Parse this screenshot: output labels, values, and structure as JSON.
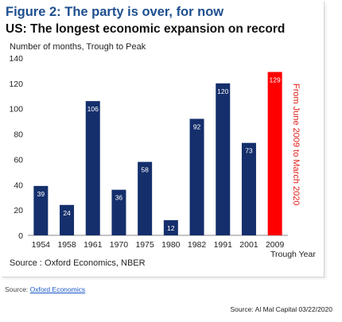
{
  "header": {
    "figure_title": "Figure 2: The party is over, for now"
  },
  "chart_data": {
    "type": "bar",
    "title": "US: The longest economic expansion on record",
    "ylabel": "Number of months, Trough to Peak",
    "xlabel": "Trough Year",
    "categories": [
      "1954",
      "1958",
      "1961",
      "1970",
      "1975",
      "1980",
      "1982",
      "1991",
      "2001",
      "2009"
    ],
    "values": [
      39,
      24,
      106,
      36,
      58,
      12,
      92,
      120,
      73,
      129
    ],
    "ylim": [
      0,
      140
    ],
    "yticks": [
      0,
      20,
      40,
      60,
      80,
      100,
      120,
      140
    ],
    "colors": {
      "default_bar": "#152f6c",
      "highlight_bar": "#ff0000",
      "annotation": "#e0201b"
    },
    "highlight_category": "2009",
    "annotation": "From June 2009 to March 2020",
    "source": "Source : Oxford Economics, NBER",
    "grid": false
  },
  "footer": {
    "source_prefix": "Source: ",
    "source_link": "Oxford Economics",
    "credit": "Source: Al Mal Capital 03/22/2020"
  }
}
